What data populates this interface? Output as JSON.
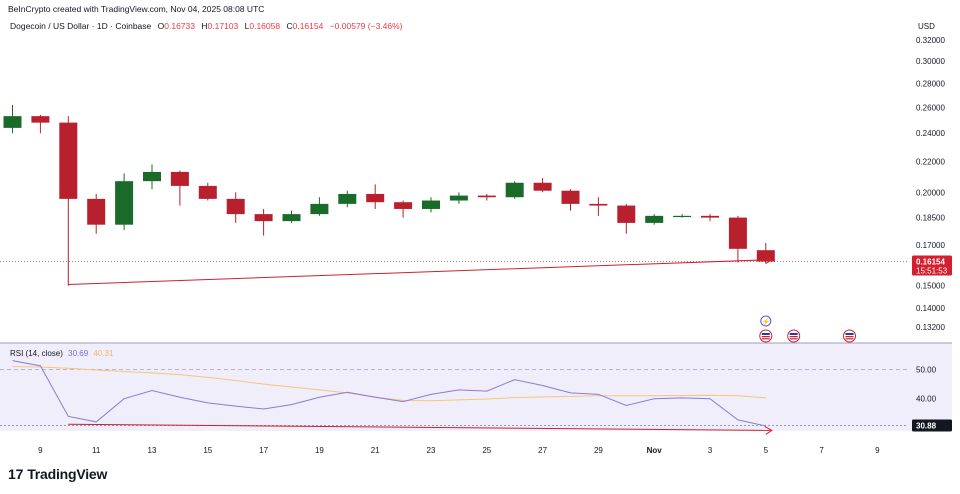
{
  "header": {
    "created_by": "BeInCrypto created with TradingView.com, Nov 04, 2025 08:08 UTC",
    "symbol": "Dogecoin / US Dollar · 1D · Coinbase",
    "o_label": "O",
    "o_value": "0.16733",
    "h_label": "H",
    "h_value": "0.17103",
    "l_label": "L",
    "l_value": "0.16058",
    "c_label": "C",
    "c_value": "0.16154",
    "change": "−0.00579 (−3.46%)"
  },
  "price_axis": {
    "currency": "USD",
    "current_price": "0.16154",
    "countdown": "15:51:53"
  },
  "rsi": {
    "label": "RSI (14, close)",
    "rsi_value": "30.69",
    "ma_value": "40.31",
    "current_label": "30.88"
  },
  "colors": {
    "up": "#1a6b2a",
    "down": "#b8202e",
    "rsi_line": "#8a7ad6",
    "rsi_ma": "#f5c57a",
    "divergence": "#d0202e",
    "rsi_bg": "#f1eefb"
  },
  "icons": [
    "event-icon",
    "flag-icon",
    "flag-icon",
    "flag-icon"
  ],
  "branding": {
    "logo_text": "TradingView",
    "logo_mark": "17"
  },
  "chart_data": [
    {
      "type": "candlestick",
      "title": "Dogecoin / US Dollar · 1D · Coinbase",
      "ylabel": "USD",
      "y_scale": "log",
      "y_ticks": [
        "0.32000",
        "0.30000",
        "0.28000",
        "0.26000",
        "0.24000",
        "0.22000",
        "0.20000",
        "0.18500",
        "0.17000",
        "0.15000",
        "0.14000",
        "0.13200"
      ],
      "x_ticks": [
        "9",
        "11",
        "13",
        "15",
        "17",
        "19",
        "21",
        "23",
        "25",
        "27",
        "29",
        "Nov",
        "3",
        "5",
        "7",
        "9"
      ],
      "x": [
        "Oct 8",
        "Oct 9",
        "Oct 10",
        "Oct 11",
        "Oct 12",
        "Oct 13",
        "Oct 14",
        "Oct 15",
        "Oct 16",
        "Oct 17",
        "Oct 18",
        "Oct 19",
        "Oct 20",
        "Oct 21",
        "Oct 22",
        "Oct 23",
        "Oct 24",
        "Oct 25",
        "Oct 26",
        "Oct 27",
        "Oct 28",
        "Oct 29",
        "Oct 30",
        "Oct 31",
        "Nov 1",
        "Nov 2",
        "Nov 3",
        "Nov 4"
      ],
      "ohlc": [
        [
          0.244,
          0.262,
          0.24,
          0.253
        ],
        [
          0.253,
          0.254,
          0.24,
          0.248
        ],
        [
          0.248,
          0.253,
          0.15,
          0.196
        ],
        [
          0.196,
          0.199,
          0.176,
          0.181
        ],
        [
          0.181,
          0.212,
          0.178,
          0.207
        ],
        [
          0.207,
          0.218,
          0.202,
          0.213
        ],
        [
          0.213,
          0.214,
          0.192,
          0.204
        ],
        [
          0.204,
          0.206,
          0.195,
          0.196
        ],
        [
          0.196,
          0.2,
          0.182,
          0.187
        ],
        [
          0.187,
          0.19,
          0.175,
          0.183
        ],
        [
          0.183,
          0.189,
          0.182,
          0.187
        ],
        [
          0.187,
          0.197,
          0.186,
          0.193
        ],
        [
          0.193,
          0.201,
          0.191,
          0.199
        ],
        [
          0.199,
          0.205,
          0.19,
          0.194
        ],
        [
          0.194,
          0.195,
          0.185,
          0.19
        ],
        [
          0.19,
          0.197,
          0.188,
          0.195
        ],
        [
          0.195,
          0.2,
          0.193,
          0.198
        ],
        [
          0.198,
          0.199,
          0.195,
          0.197
        ],
        [
          0.197,
          0.207,
          0.196,
          0.206
        ],
        [
          0.206,
          0.209,
          0.2,
          0.201
        ],
        [
          0.201,
          0.202,
          0.189,
          0.193
        ],
        [
          0.193,
          0.197,
          0.186,
          0.192
        ],
        [
          0.192,
          0.193,
          0.176,
          0.182
        ],
        [
          0.182,
          0.187,
          0.181,
          0.186
        ],
        [
          0.186,
          0.187,
          0.185,
          0.186
        ],
        [
          0.186,
          0.187,
          0.183,
          0.185
        ],
        [
          0.185,
          0.186,
          0.161,
          0.168
        ],
        [
          0.1673,
          0.17103,
          0.16058,
          0.16154
        ]
      ],
      "current_price": 0.16154,
      "annotation": {
        "type": "trendline",
        "from": [
          "Oct 10",
          0.1505
        ],
        "to": [
          "Nov 4",
          0.1625
        ]
      }
    },
    {
      "type": "line",
      "title": "RSI (14, close)",
      "y_ticks": [
        "50.00",
        "40.00"
      ],
      "ylim": [
        29,
        59
      ],
      "x": [
        "Oct 8",
        "Oct 9",
        "Oct 10",
        "Oct 11",
        "Oct 12",
        "Oct 13",
        "Oct 14",
        "Oct 15",
        "Oct 16",
        "Oct 17",
        "Oct 18",
        "Oct 19",
        "Oct 20",
        "Oct 21",
        "Oct 22",
        "Oct 23",
        "Oct 24",
        "Oct 25",
        "Oct 26",
        "Oct 27",
        "Oct 28",
        "Oct 29",
        "Oct 30",
        "Oct 31",
        "Nov 1",
        "Nov 2",
        "Nov 3",
        "Nov 4"
      ],
      "series": [
        {
          "name": "RSI (14, close)",
          "values": [
            53.0,
            51.2,
            34.0,
            32.1,
            40.0,
            42.8,
            40.5,
            38.6,
            37.5,
            36.5,
            38.0,
            40.5,
            42.2,
            40.5,
            39.0,
            41.5,
            43.0,
            42.6,
            46.5,
            44.5,
            42.0,
            41.5,
            37.7,
            40.0,
            40.3,
            40.0,
            32.8,
            30.7
          ]
        },
        {
          "name": "RSI-based MA",
          "values": [
            51.0,
            50.8,
            50.4,
            49.8,
            49.3,
            48.8,
            48.2,
            47.3,
            46.2,
            45.0,
            44.0,
            43.0,
            42.0,
            40.6,
            39.4,
            39.3,
            39.6,
            39.9,
            40.4,
            40.6,
            40.8,
            41.0,
            41.0,
            41.0,
            41.1,
            41.2,
            41.0,
            40.3
          ]
        }
      ],
      "reference_lines": [
        50,
        30.88
      ],
      "annotation": {
        "type": "trendline",
        "from": [
          "Oct 10",
          31.3
        ],
        "to": [
          "Nov 4",
          29.2
        ]
      }
    }
  ]
}
